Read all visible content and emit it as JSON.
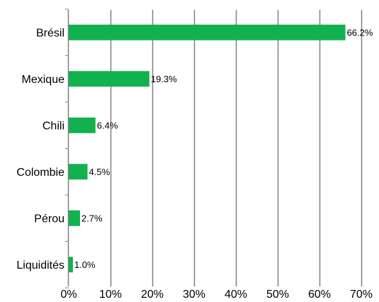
{
  "chart_data": {
    "type": "bar",
    "orientation": "horizontal",
    "categories": [
      "Brésil",
      "Mexique",
      "Chili",
      "Colombie",
      "Pérou",
      "Liquidités"
    ],
    "values": [
      66.2,
      19.3,
      6.4,
      4.5,
      2.7,
      1.0
    ],
    "data_labels": [
      "66.2%",
      "19.3%",
      "6.4%",
      "4.5%",
      "2.7%",
      "1.0%"
    ],
    "x_ticks": [
      0,
      10,
      20,
      30,
      40,
      50,
      60,
      70
    ],
    "x_tick_labels": [
      "0%",
      "10%",
      "20%",
      "30%",
      "40%",
      "50%",
      "60%",
      "70%"
    ],
    "xlim": [
      0,
      70
    ],
    "title": "",
    "xlabel": "",
    "ylabel": "",
    "grid": "vertical",
    "legend": "none",
    "colors": {
      "bar": "#11b14f",
      "grid": "#808080",
      "axis": "#808080"
    }
  }
}
